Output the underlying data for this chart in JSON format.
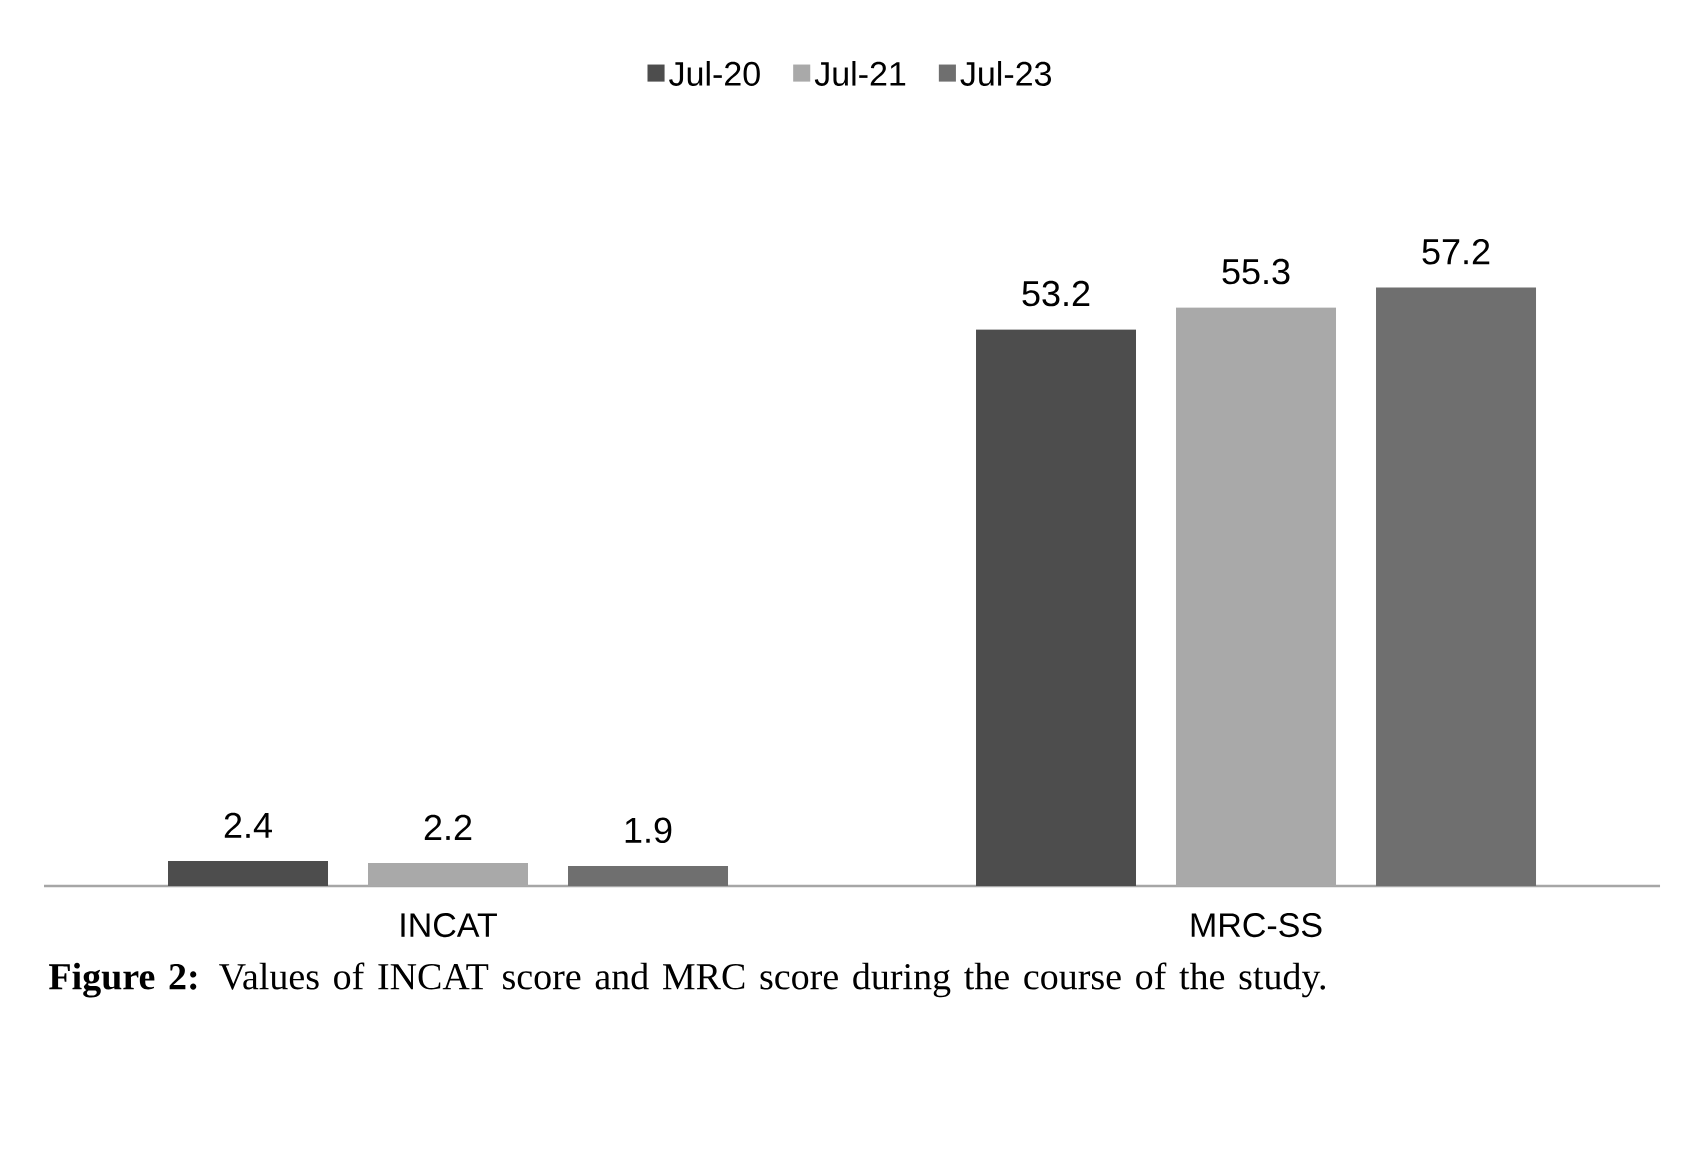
{
  "chart_data": {
    "type": "bar",
    "categories": [
      "INCAT",
      "MRC-SS"
    ],
    "series": [
      {
        "name": "Jul-20",
        "color": "#4d4d4d",
        "values": [
          2.4,
          53.2
        ]
      },
      {
        "name": "Jul-21",
        "color": "#a9a9a9",
        "values": [
          2.2,
          55.3
        ]
      },
      {
        "name": "Jul-23",
        "color": "#6f6f6f",
        "values": [
          1.9,
          57.2
        ]
      }
    ],
    "data_labels": true,
    "legend": "top",
    "annotations": [
      "**Figure 2:** Values of INCAT score and MRC score during the course of the study."
    ]
  }
}
